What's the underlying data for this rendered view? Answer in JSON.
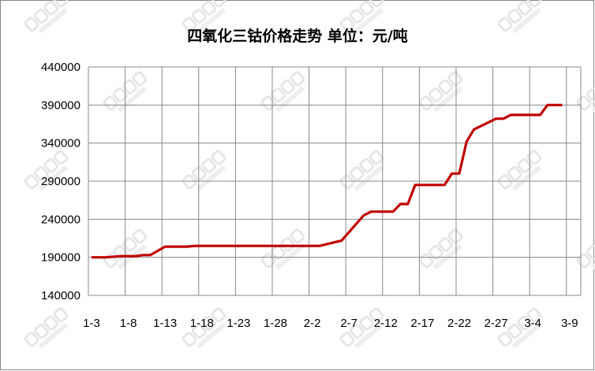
{
  "chart_data": {
    "type": "line",
    "title": "四氧化三钴价格走势 单位：元/吨",
    "xlabel": "",
    "ylabel": "",
    "ylim": [
      140000,
      440000
    ],
    "yticks": [
      "140000",
      "190000",
      "240000",
      "290000",
      "340000",
      "390000",
      "440000"
    ],
    "xticks": [
      "1-3",
      "1-8",
      "1-13",
      "1-18",
      "1-23",
      "1-28",
      "2-2",
      "2-7",
      "2-12",
      "2-17",
      "2-22",
      "2-27",
      "3-4",
      "3-9"
    ],
    "grid": true,
    "legend": "none",
    "watermark": "CBEA 电池中国",
    "colors": {
      "line": "#C00000",
      "grid": "#888888"
    },
    "series": [
      {
        "points": [
          [
            "1-3",
            190000
          ],
          [
            "1-5",
            190000
          ],
          [
            "1-7",
            191500
          ],
          [
            "1-9",
            191500
          ],
          [
            "1-10",
            193000
          ],
          [
            "1-11",
            193000
          ],
          [
            "1-13",
            204000
          ],
          [
            "1-16",
            204000
          ],
          [
            "1-17",
            205000
          ],
          [
            "2-3",
            205000
          ],
          [
            "2-6",
            212000
          ],
          [
            "2-9",
            245000
          ],
          [
            "2-10",
            250000
          ],
          [
            "2-13",
            250000
          ],
          [
            "2-14",
            260000
          ],
          [
            "2-15",
            260000
          ],
          [
            "2-16",
            285000
          ],
          [
            "2-20",
            285000
          ],
          [
            "2-21",
            300000
          ],
          [
            "2-22",
            300000
          ],
          [
            "2-23",
            342000
          ],
          [
            "2-24",
            358000
          ],
          [
            "2-27",
            372000
          ],
          [
            "2-28",
            372000
          ],
          [
            "3-1",
            377000
          ],
          [
            "3-5",
            377000
          ],
          [
            "3-6",
            390000
          ],
          [
            "3-8",
            390000
          ]
        ]
      }
    ]
  }
}
